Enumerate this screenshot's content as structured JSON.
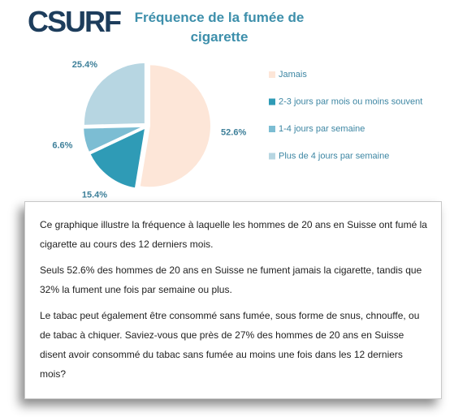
{
  "logo": "CSURF",
  "chart_data": {
    "type": "pie",
    "title": "Fréquence de la fumée de cigarette",
    "categories": [
      "Jamais",
      "2-3 jours par mois ou moins souvent",
      "1-4 jours par semaine",
      "Plus de 4 jours par semaine"
    ],
    "values": [
      52.6,
      15.4,
      6.6,
      25.4
    ],
    "value_labels": [
      "52.6%",
      "15.4%",
      "6.6%",
      "25.4%"
    ],
    "colors": [
      "#fde6d8",
      "#2f9bb6",
      "#7cbdd3",
      "#b7d6e2"
    ]
  },
  "text_box": {
    "paragraphs": [
      "Ce graphique illustre la fréquence à laquelle les hommes de 20 ans en Suisse ont fumé la cigarette au cours des 12 derniers mois.",
      "Seuls 52.6% des hommes de 20 ans en Suisse ne fument jamais la cigarette, tandis que 32% la fument une fois par semaine ou plus.",
      "Le tabac peut également être consommé sans fumée, sous forme de snus, chnouffe, ou de tabac à chiquer. Saviez-vous que près de 27% des hommes de 20 ans en Suisse disent avoir consommé du tabac sans fumée au moins une fois dans les 12 derniers mois?"
    ]
  }
}
